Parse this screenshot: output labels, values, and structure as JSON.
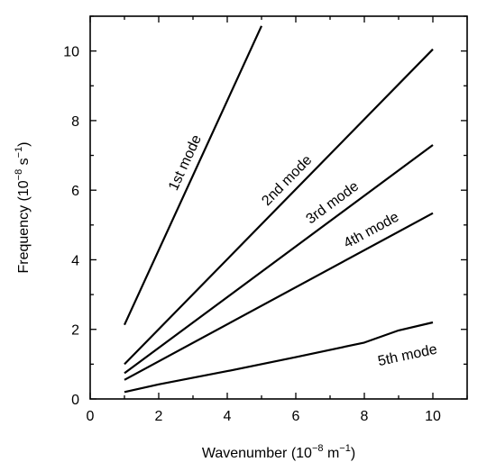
{
  "chart_data": {
    "type": "line",
    "title": "",
    "xlabel": "Wavenumber (10",
    "xlabel_exp": "−8",
    "xlabel_unit": " m",
    "xlabel_unit_exp": "−1",
    "xlabel_close": ")",
    "ylabel": "Frequency (10",
    "ylabel_exp": "−8",
    "ylabel_unit": " s",
    "ylabel_unit_exp": "−1",
    "ylabel_close": ")",
    "xlim": [
      0,
      11
    ],
    "ylim": [
      0,
      11
    ],
    "xticks": [
      0,
      2,
      4,
      6,
      8,
      10
    ],
    "yticks": [
      0,
      2,
      4,
      6,
      8,
      10
    ],
    "grid": false,
    "series": [
      {
        "name": "1st mode",
        "x": [
          1,
          5
        ],
        "y": [
          2.13,
          10.72
        ]
      },
      {
        "name": "2nd mode",
        "x": [
          1,
          10
        ],
        "y": [
          1.0,
          10.05
        ]
      },
      {
        "name": "3rd mode",
        "x": [
          1,
          10
        ],
        "y": [
          0.74,
          7.3
        ]
      },
      {
        "name": "4th mode",
        "x": [
          1,
          10
        ],
        "y": [
          0.55,
          5.34
        ]
      },
      {
        "name": "5th mode",
        "x": [
          1,
          2,
          4,
          6,
          8,
          9,
          10
        ],
        "y": [
          0.2,
          0.42,
          0.8,
          1.2,
          1.62,
          1.97,
          2.2
        ]
      }
    ]
  }
}
